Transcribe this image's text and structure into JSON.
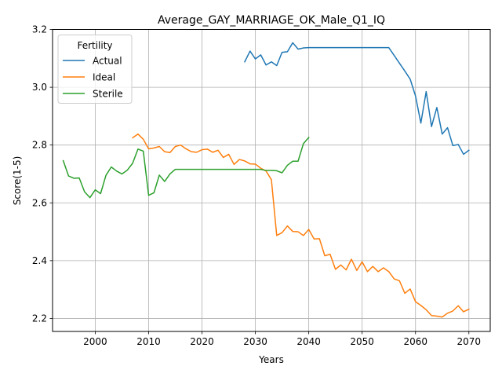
{
  "chart_data": {
    "type": "line",
    "title": "Average_GAY_MARRIAGE_OK_Male_Q1_IQ",
    "xlabel": "Years",
    "ylabel": "Score(1-5)",
    "xlim": [
      1992,
      2074
    ],
    "ylim": [
      2.155,
      3.2
    ],
    "xticks": [
      2000,
      2010,
      2020,
      2030,
      2040,
      2050,
      2060,
      2070
    ],
    "yticks": [
      2.2,
      2.4,
      2.6,
      2.8,
      3.0,
      3.2
    ],
    "ytick_labels": [
      "2.2",
      "2.4",
      "2.6",
      "2.8",
      "3.0",
      "3.2"
    ],
    "grid": true,
    "legend": {
      "title": "Fertility",
      "placement": "top-left"
    },
    "series": [
      {
        "name": "Actual",
        "color": "#1f77b4",
        "x": [
          2028,
          2029,
          2030,
          2031,
          2032,
          2033,
          2034,
          2035,
          2036,
          2037,
          2038,
          2039,
          2040,
          2041,
          2042,
          2043,
          2044,
          2045,
          2046,
          2047,
          2048,
          2049,
          2050,
          2051,
          2052,
          2053,
          2054,
          2055,
          2056,
          2057,
          2058,
          2059,
          2060,
          2061,
          2062,
          2063,
          2064,
          2065,
          2066,
          2067,
          2068,
          2069,
          2070
        ],
        "y": [
          3.088,
          3.125,
          3.098,
          3.112,
          3.077,
          3.088,
          3.075,
          3.121,
          3.123,
          3.154,
          3.132,
          3.136,
          3.137,
          3.137,
          3.137,
          3.137,
          3.137,
          3.137,
          3.137,
          3.137,
          3.137,
          3.137,
          3.137,
          3.137,
          3.137,
          3.137,
          3.137,
          3.137,
          3.11,
          3.083,
          3.056,
          3.028,
          2.97,
          2.876,
          2.985,
          2.864,
          2.93,
          2.838,
          2.86,
          2.798,
          2.802,
          2.768,
          2.782
        ]
      },
      {
        "name": "Ideal",
        "color": "#ff7f0e",
        "x": [
          2007,
          2008,
          2009,
          2010,
          2011,
          2012,
          2013,
          2014,
          2015,
          2016,
          2017,
          2018,
          2019,
          2020,
          2021,
          2022,
          2023,
          2024,
          2025,
          2026,
          2027,
          2028,
          2029,
          2030,
          2031,
          2032,
          2033,
          2034,
          2035,
          2036,
          2037,
          2038,
          2039,
          2040,
          2041,
          2042,
          2043,
          2044,
          2045,
          2046,
          2047,
          2048,
          2049,
          2050,
          2051,
          2052,
          2053,
          2054,
          2055,
          2056,
          2057,
          2058,
          2059,
          2060,
          2061,
          2062,
          2063,
          2064,
          2065,
          2066,
          2067,
          2068,
          2069,
          2070
        ],
        "y": [
          2.825,
          2.838,
          2.82,
          2.787,
          2.79,
          2.795,
          2.777,
          2.774,
          2.795,
          2.8,
          2.787,
          2.777,
          2.775,
          2.784,
          2.786,
          2.775,
          2.782,
          2.757,
          2.768,
          2.733,
          2.75,
          2.745,
          2.735,
          2.734,
          2.72,
          2.71,
          2.68,
          2.487,
          2.497,
          2.52,
          2.501,
          2.5,
          2.487,
          2.508,
          2.475,
          2.476,
          2.417,
          2.422,
          2.37,
          2.385,
          2.368,
          2.405,
          2.366,
          2.396,
          2.362,
          2.38,
          2.362,
          2.375,
          2.362,
          2.337,
          2.33,
          2.287,
          2.302,
          2.258,
          2.245,
          2.23,
          2.21,
          2.208,
          2.205,
          2.218,
          2.226,
          2.244,
          2.223,
          2.232
        ]
      },
      {
        "name": "Sterile",
        "color": "#2ca02c",
        "x": [
          1994,
          1995,
          1996,
          1997,
          1998,
          1999,
          2000,
          2001,
          2002,
          2003,
          2004,
          2005,
          2006,
          2007,
          2008,
          2009,
          2010,
          2011,
          2012,
          2013,
          2014,
          2015,
          2016,
          2017,
          2018,
          2019,
          2020,
          2021,
          2022,
          2023,
          2024,
          2025,
          2026,
          2027,
          2028,
          2029,
          2030,
          2031,
          2032,
          2033,
          2034,
          2035,
          2036,
          2037,
          2038,
          2039,
          2040
        ],
        "y": [
          2.746,
          2.693,
          2.685,
          2.686,
          2.638,
          2.618,
          2.645,
          2.632,
          2.695,
          2.724,
          2.71,
          2.7,
          2.713,
          2.737,
          2.786,
          2.779,
          2.626,
          2.635,
          2.696,
          2.674,
          2.7,
          2.716,
          2.716,
          2.716,
          2.716,
          2.716,
          2.716,
          2.716,
          2.716,
          2.716,
          2.716,
          2.716,
          2.716,
          2.716,
          2.716,
          2.716,
          2.716,
          2.716,
          2.712,
          2.712,
          2.711,
          2.704,
          2.73,
          2.744,
          2.744,
          2.805,
          2.826
        ]
      }
    ]
  }
}
